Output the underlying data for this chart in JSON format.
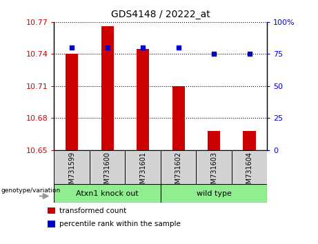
{
  "title": "GDS4148 / 20222_at",
  "samples": [
    "GSM731599",
    "GSM731600",
    "GSM731601",
    "GSM731602",
    "GSM731603",
    "GSM731604"
  ],
  "transformed_count": [
    10.74,
    10.766,
    10.745,
    10.71,
    10.668,
    10.668
  ],
  "percentile_rank": [
    80,
    80,
    80,
    80,
    75,
    75
  ],
  "ylim_left": [
    10.65,
    10.77
  ],
  "ylim_right": [
    0,
    100
  ],
  "yticks_left": [
    10.65,
    10.68,
    10.71,
    10.74,
    10.77
  ],
  "yticks_right": [
    0,
    25,
    50,
    75,
    100
  ],
  "bar_color": "#cc0000",
  "dot_color": "#0000cc",
  "bar_width": 0.35,
  "genotype_label": "genotype/variation",
  "legend_bar_label": "transformed count",
  "legend_dot_label": "percentile rank within the sample",
  "background_color": "#ffffff",
  "tick_label_color_left": "#cc0000",
  "tick_label_color_right": "#0000cc",
  "group1_label": "Atxn1 knock out",
  "group2_label": "wild type",
  "group_color": "#90ee90",
  "sample_box_color": "#d3d3d3"
}
